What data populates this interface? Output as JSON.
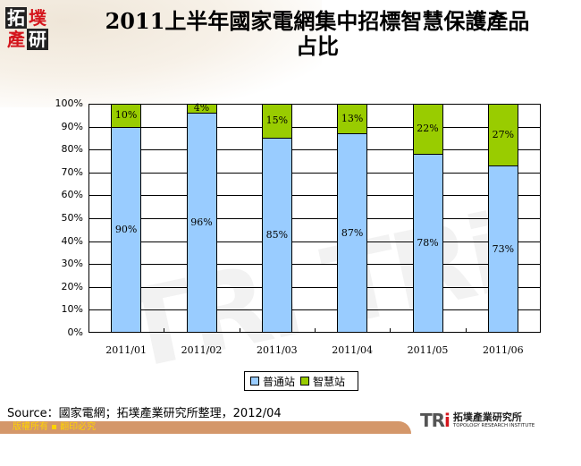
{
  "header": {
    "logo_chars": [
      "拓",
      "墣",
      "產",
      "研"
    ],
    "title_line1": "2011上半年國家電網集中招標智慧保護產品",
    "title_line2": "占比"
  },
  "chart_data": {
    "type": "bar",
    "stacked": "percent",
    "title": "2011上半年國家電網集中招標智慧保護產品占比",
    "categories": [
      "2011/01",
      "2011/02",
      "2011/03",
      "2011/04",
      "2011/05",
      "2011/06"
    ],
    "series": [
      {
        "name": "普通站",
        "color": "#99ccff",
        "values": [
          90,
          96,
          85,
          87,
          78,
          73
        ],
        "labels": [
          "90%",
          "96%",
          "85%",
          "87%",
          "78%",
          "73%"
        ]
      },
      {
        "name": "智慧站",
        "color": "#99cc00",
        "values": [
          10,
          4,
          15,
          13,
          22,
          27
        ],
        "labels": [
          "10%",
          "4%",
          "15%",
          "13%",
          "22%",
          "27%"
        ]
      }
    ],
    "yticks": [
      "0%",
      "10%",
      "20%",
      "30%",
      "40%",
      "50%",
      "60%",
      "70%",
      "80%",
      "90%",
      "100%"
    ],
    "ylim": [
      0,
      100
    ],
    "xlabel": "",
    "ylabel": "",
    "grid": true,
    "legend_position": "bottom"
  },
  "legend": {
    "items": [
      {
        "label": "普通站",
        "color": "#99ccff"
      },
      {
        "label": "智慧站",
        "color": "#99cc00"
      }
    ]
  },
  "source": "Source：國家電網；拓墣產業研究所整理，2012/04",
  "footer": {
    "copyright": "版權所有 ▪ 翻印必究",
    "org_mark": "TRi",
    "org_name_zh": "拓墣產業研究所",
    "org_name_en": "TOPOLOGY RESEARCH INSTITUTE"
  }
}
